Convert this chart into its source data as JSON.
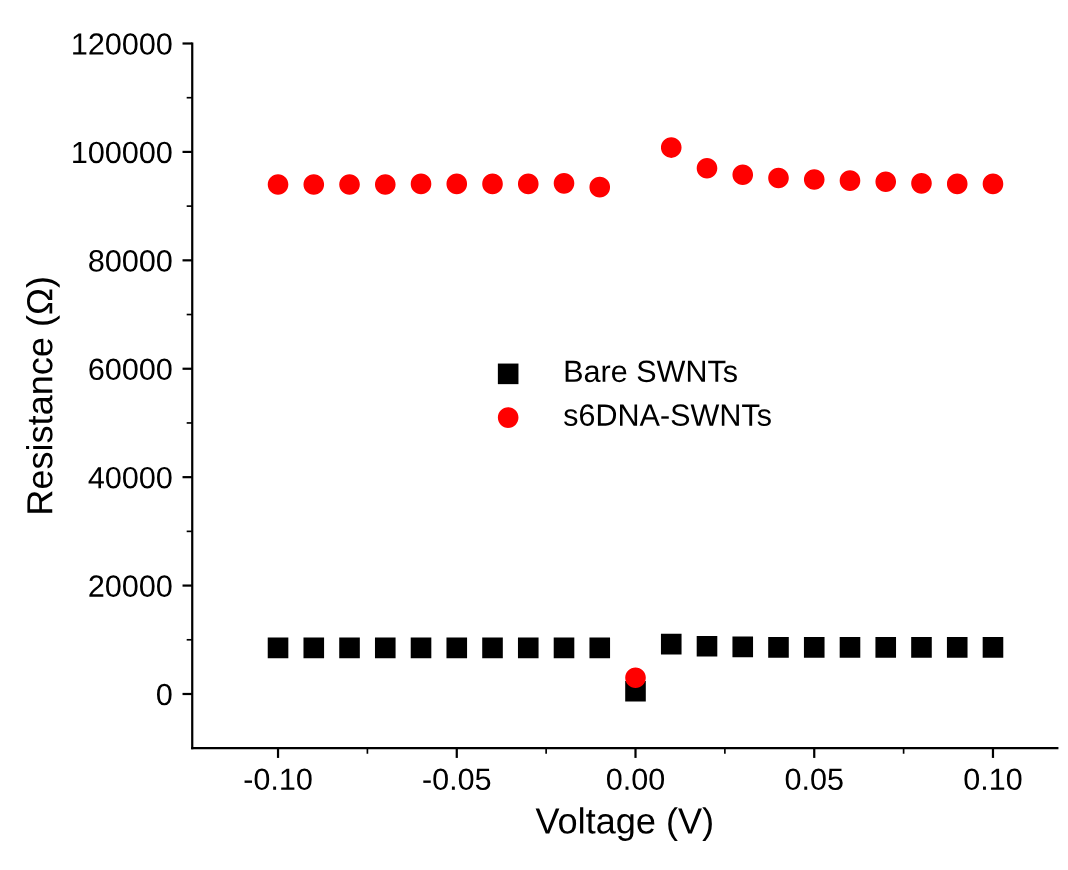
{
  "chart_data": {
    "type": "scatter",
    "xlabel": "Voltage (V)",
    "ylabel": "Resistance (Ω)",
    "x": [
      -0.1,
      -0.09,
      -0.08,
      -0.07,
      -0.06,
      -0.05,
      -0.04,
      -0.03,
      -0.02,
      -0.01,
      0.0,
      0.01,
      0.02,
      0.03,
      0.04,
      0.05,
      0.06,
      0.07,
      0.08,
      0.09,
      0.1
    ],
    "series": [
      {
        "name": "Bare SWNTs",
        "color": "#000000",
        "marker": "square",
        "values": [
          8500,
          8500,
          8500,
          8500,
          8500,
          8500,
          8500,
          8500,
          8500,
          8500,
          500,
          9200,
          8800,
          8700,
          8600,
          8600,
          8600,
          8600,
          8600,
          8600,
          8600
        ]
      },
      {
        "name": "s6DNA-SWNTs",
        "color": "#ff0000",
        "marker": "circle",
        "values": [
          94000,
          94000,
          94000,
          94000,
          94100,
          94100,
          94100,
          94100,
          94200,
          93500,
          3000,
          100800,
          97000,
          95800,
          95200,
          94900,
          94700,
          94500,
          94200,
          94100,
          94100
        ]
      }
    ],
    "xlim": [
      -0.124,
      0.118
    ],
    "xticks": [
      {
        "value": -0.1,
        "label": "-0.10"
      },
      {
        "value": -0.05,
        "label": "-0.05"
      },
      {
        "value": 0,
        "label": "0.00"
      },
      {
        "value": 0.05,
        "label": "0.05"
      },
      {
        "value": 0.1,
        "label": "0.10"
      }
    ],
    "ylim": [
      -10000,
      120000
    ],
    "yticks": [
      0,
      20000,
      40000,
      60000,
      80000,
      100000,
      120000
    ],
    "legend": "center",
    "grid": false
  }
}
